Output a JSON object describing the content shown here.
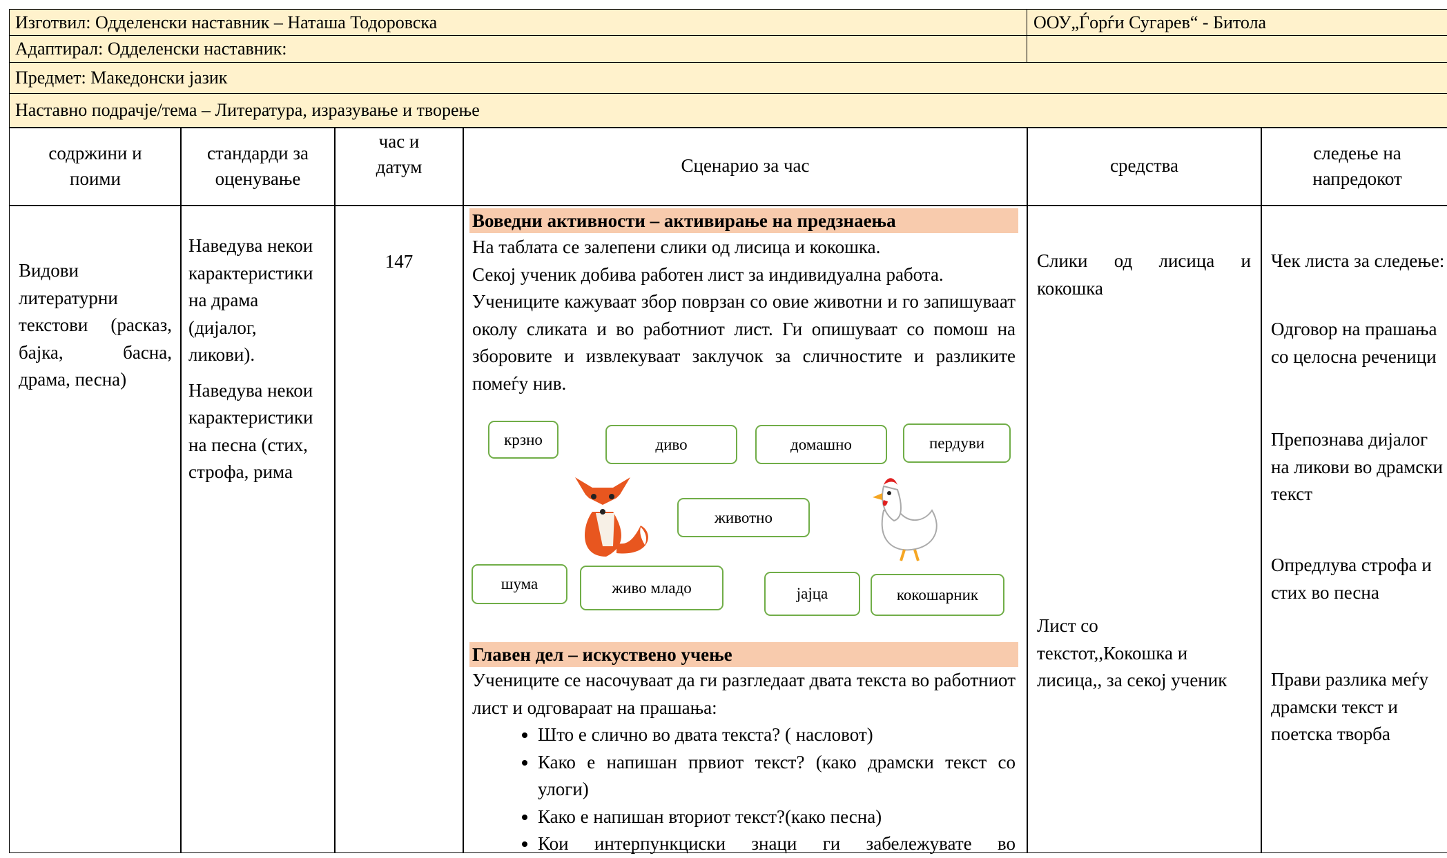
{
  "header": {
    "author": "Изготвил: Одделенски наставник – Наташа Тодоровска",
    "school": "ООУ„Ѓорѓи Сугарев“ - Битола",
    "adapted": "Адаптирал: Одделенски наставник:",
    "subject": "Предмет: Македонски јазик",
    "topic": "Наставно подрачје/тема – Литература, изразување и творење"
  },
  "table": {
    "columns": [
      "содржини и поими",
      "стандарди за оценување",
      "час и датум",
      "Сценарио за час",
      "средства",
      "следење на напредокот"
    ],
    "content": "Видови литературни текстови (расказ, бајка, басна, драма, песна)",
    "standards": [
      "Наведува некои карактеристики на драма (дијалог, ликови).",
      "Наведува некои карактеристики на песна (стих, строфа, рима"
    ],
    "hour": "147",
    "scenario": {
      "intro_heading": "Воведни активности – активирање на предзнаења",
      "intro": [
        "На таблата се залепени слики од лисица и кокошка.",
        "Секој ученик добива работен лист за индивидуална работа.",
        "Учениците кажуваат збор поврзан со овие животни и го запишуваат околу сликата и во работниот лист. Ги опишуваат со помош на зборовите и извлекуваат заклучок за сличностите и разликите помеѓу нив."
      ],
      "words": [
        "крзно",
        "диво",
        "домашно",
        "пердуви",
        "животно",
        "шума",
        "живо младо",
        "јајца",
        "кокошарник"
      ],
      "main_heading": "Главен дел – искуствено учење",
      "main": "Учениците се насочуваат да ги разгледаат двата текста во работниот лист и одговараат на прашања:",
      "questions": [
        "Што е слично во двата текста? ( насловот)",
        "Како е напишан првиот текст? (како драмски текст со улоги)",
        "Како е напишан вториот текст?(како песна)",
        "Кои интерпункциски знаци ги забележувате во"
      ]
    },
    "resources": [
      "Слики од лисица и кокошка",
      "Лист со текстот,,Кокошка и лисица,, за секој ученик"
    ],
    "tracking": [
      "Чек листа за следење:",
      "Одговор на прашања со целосна реченици",
      "Препознава дијалог на ликови во драмски текст",
      "Опредлува строфа и стих во песна",
      "Прави разлика меѓу драмски текст и поетска творба"
    ]
  }
}
